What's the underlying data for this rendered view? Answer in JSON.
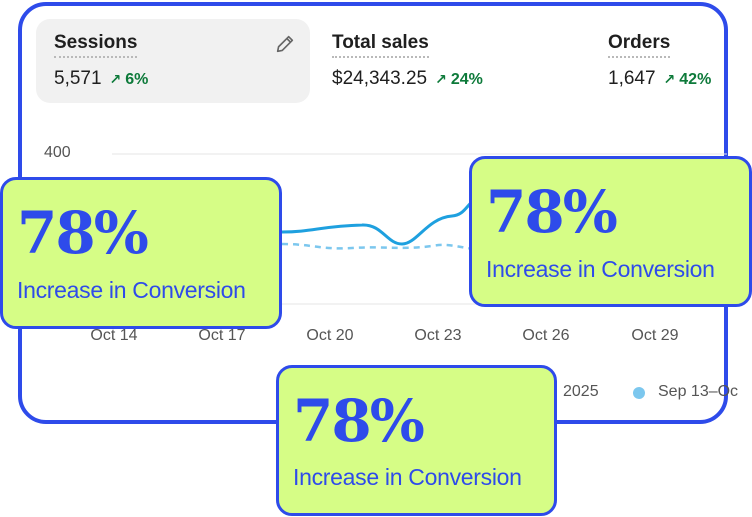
{
  "metrics": [
    {
      "label": "Sessions",
      "value": "5,571",
      "change": "6%"
    },
    {
      "label": "Total sales",
      "value": "$24,343.25",
      "change": "24%"
    },
    {
      "label": "Orders",
      "value": "1,647",
      "change": "42%"
    }
  ],
  "icons": {
    "edit": "pencil-icon",
    "up": "arrow-up-right-icon"
  },
  "chart": {
    "y_tick": "400",
    "x_ticks": [
      "Oct 14",
      "Oct 17",
      "Oct 20",
      "Oct 23",
      "Oct 26",
      "Oct 29"
    ],
    "legend": {
      "current_partial": "2025",
      "previous_partial": "Sep 13–Oc"
    },
    "colors": {
      "current": "#1ea0df",
      "previous": "#7cc7ee"
    }
  },
  "badges": [
    {
      "big": "78%",
      "small": "Increase in Conversion"
    },
    {
      "big": "78%",
      "small": "Increase in Conversion"
    },
    {
      "big": "78%",
      "small": "Increase in Conversion"
    }
  ]
}
